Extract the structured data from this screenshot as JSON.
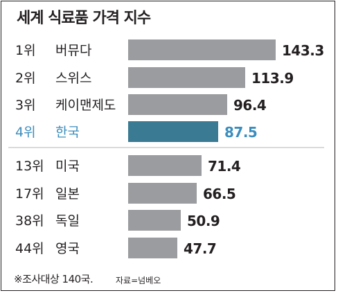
{
  "title": "세계 식료품 가격 지수",
  "note": "※조사대상 140국.",
  "source": "자료=넘베오",
  "colors": {
    "bar": "#9b9c9f",
    "highlight_bar": "#3a7a92",
    "highlight_text": "#3b8dbd",
    "text": "#231f20",
    "divider": "#b5b6b8"
  },
  "chart_data": {
    "type": "bar",
    "orientation": "horizontal",
    "title": "세계 식료품 가격 지수",
    "xlim": [
      0,
      143.3
    ],
    "grid": false,
    "rows": [
      {
        "rank": "1위",
        "country": "버뮤다",
        "value": 143.3,
        "label": "143.3",
        "highlight": false
      },
      {
        "rank": "2위",
        "country": "스위스",
        "value": 113.9,
        "label": "113.9",
        "highlight": false
      },
      {
        "rank": "3위",
        "country": "케이맨제도",
        "value": 96.4,
        "label": "96.4",
        "highlight": false
      },
      {
        "rank": "4위",
        "country": "한국",
        "value": 87.5,
        "label": "87.5",
        "highlight": true
      },
      {
        "rank": "13위",
        "country": "미국",
        "value": 71.4,
        "label": "71.4",
        "highlight": false
      },
      {
        "rank": "17위",
        "country": "일본",
        "value": 66.5,
        "label": "66.5",
        "highlight": false
      },
      {
        "rank": "38위",
        "country": "독일",
        "value": 50.9,
        "label": "50.9",
        "highlight": false
      },
      {
        "rank": "44위",
        "country": "영국",
        "value": 47.7,
        "label": "47.7",
        "highlight": false
      }
    ]
  }
}
